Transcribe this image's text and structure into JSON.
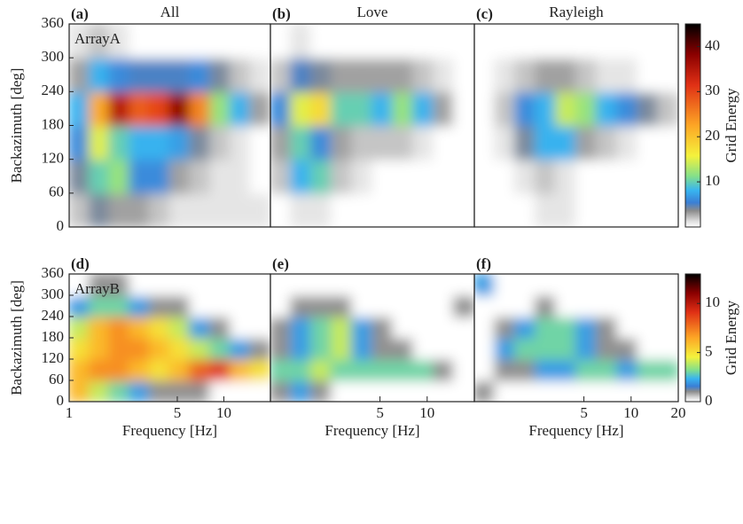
{
  "chart_data": [
    {
      "type": "heatmap",
      "panel_label": "(a)",
      "title": "All",
      "annotation": "ArrayA",
      "ylabel": "Backazimuth [deg]",
      "xlim": [
        1,
        20
      ],
      "ylim": [
        0,
        360
      ],
      "yticks": [
        0,
        60,
        120,
        180,
        240,
        300,
        360
      ],
      "log_x": true,
      "x": [
        1.16,
        1.57,
        2.11,
        2.85,
        3.85,
        5.2,
        7.0,
        9.5,
        12.8,
        17.2
      ],
      "y": [
        30,
        90,
        150,
        210,
        270,
        330
      ],
      "z": [
        [
          2,
          4,
          3,
          3,
          2,
          1,
          1,
          1,
          1,
          1
        ],
        [
          4,
          10,
          12,
          6,
          6,
          3,
          2,
          1,
          1,
          0
        ],
        [
          6,
          15,
          10,
          8,
          8,
          7,
          4,
          2,
          1,
          0
        ],
        [
          8,
          22,
          35,
          28,
          30,
          38,
          25,
          12,
          8,
          3
        ],
        [
          3,
          8,
          6,
          5,
          5,
          5,
          6,
          4,
          2,
          1
        ],
        [
          1,
          2,
          1,
          0,
          0,
          0,
          0,
          0,
          0,
          0
        ]
      ]
    },
    {
      "type": "heatmap",
      "panel_label": "(b)",
      "title": "Love",
      "xlim": [
        1,
        20
      ],
      "ylim": [
        0,
        360
      ],
      "log_x": true,
      "x": [
        1.16,
        1.57,
        2.11,
        2.85,
        3.85,
        5.2,
        7.0,
        9.5,
        12.8,
        17.2
      ],
      "y": [
        30,
        90,
        150,
        210,
        270,
        330
      ],
      "z": [
        [
          0,
          1,
          1,
          0,
          0,
          0,
          0,
          0,
          0,
          0
        ],
        [
          2,
          8,
          10,
          2,
          1,
          0,
          0,
          0,
          0,
          0
        ],
        [
          3,
          10,
          6,
          3,
          2,
          2,
          2,
          1,
          0,
          0
        ],
        [
          6,
          15,
          18,
          10,
          10,
          8,
          12,
          8,
          3,
          0
        ],
        [
          2,
          5,
          4,
          3,
          3,
          3,
          3,
          2,
          1,
          0
        ],
        [
          0,
          1,
          0,
          0,
          0,
          0,
          0,
          0,
          0,
          0
        ]
      ]
    },
    {
      "type": "heatmap",
      "panel_label": "(c)",
      "title": "Rayleigh",
      "xlim": [
        1,
        20
      ],
      "ylim": [
        0,
        360
      ],
      "log_x": true,
      "x": [
        1.16,
        1.57,
        2.11,
        2.85,
        3.85,
        5.2,
        7.0,
        9.5,
        12.8,
        17.2
      ],
      "y": [
        30,
        90,
        150,
        210,
        270,
        330
      ],
      "z": [
        [
          0,
          0,
          0,
          1,
          1,
          0,
          0,
          0,
          0,
          0
        ],
        [
          0,
          0,
          1,
          2,
          1,
          0,
          0,
          0,
          0,
          0
        ],
        [
          0,
          1,
          4,
          8,
          8,
          3,
          2,
          1,
          0,
          0
        ],
        [
          0,
          2,
          6,
          8,
          14,
          12,
          8,
          6,
          4,
          2
        ],
        [
          0,
          1,
          2,
          3,
          3,
          2,
          1,
          1,
          0,
          0
        ],
        [
          0,
          0,
          0,
          0,
          0,
          0,
          0,
          0,
          0,
          0
        ]
      ],
      "colorbar": {
        "label": "Grid Energy",
        "lim": [
          0,
          45
        ],
        "ticks": [
          10,
          20,
          30,
          40
        ]
      }
    },
    {
      "type": "heatmap",
      "panel_label": "(d)",
      "annotation": "ArrayB",
      "ylabel": "Backazimuth [deg]",
      "xlabel": "Frequency [Hz]",
      "xlim": [
        1,
        20
      ],
      "ylim": [
        0,
        360
      ],
      "yticks": [
        0,
        60,
        120,
        180,
        240,
        300,
        360
      ],
      "xticks": [
        1,
        5,
        10
      ],
      "log_x": true,
      "x": [
        1.16,
        1.57,
        2.11,
        2.85,
        3.85,
        5.2,
        7.0,
        9.5,
        12.8,
        17.2
      ],
      "y": [
        30,
        90,
        150,
        210,
        270,
        330
      ],
      "z": [
        [
          6,
          4,
          3,
          2,
          1,
          1,
          1,
          0,
          0,
          0
        ],
        [
          6,
          7,
          7,
          6,
          5,
          6,
          8,
          9,
          6,
          5
        ],
        [
          5,
          6,
          7,
          7,
          6,
          5,
          4,
          3,
          2,
          1
        ],
        [
          4,
          6,
          7,
          6,
          5,
          4,
          2,
          1,
          0,
          0
        ],
        [
          2,
          3,
          3,
          2,
          1,
          1,
          0,
          0,
          0,
          0
        ],
        [
          0,
          1,
          1,
          0,
          0,
          0,
          0,
          0,
          0,
          0
        ]
      ]
    },
    {
      "type": "heatmap",
      "panel_label": "(e)",
      "xlabel": "Frequency [Hz]",
      "xlim": [
        1,
        20
      ],
      "ylim": [
        0,
        360
      ],
      "xticks": [
        5,
        10
      ],
      "log_x": true,
      "x": [
        1.16,
        1.57,
        2.11,
        2.85,
        3.85,
        5.2,
        7.0,
        9.5,
        12.8,
        17.2
      ],
      "y": [
        30,
        90,
        150,
        210,
        270,
        330
      ],
      "z": [
        [
          1,
          2,
          1,
          0,
          0,
          0,
          0,
          0,
          0,
          0
        ],
        [
          3,
          3,
          4,
          3,
          3,
          3,
          3,
          3,
          1,
          0
        ],
        [
          1,
          2,
          3,
          4,
          2,
          1,
          1,
          0,
          0,
          0
        ],
        [
          1,
          2,
          3,
          4,
          2,
          1,
          0,
          0,
          0,
          0
        ],
        [
          0,
          1,
          1,
          1,
          0,
          0,
          0,
          0,
          0,
          1
        ],
        [
          0,
          0,
          0,
          0,
          0,
          0,
          0,
          0,
          0,
          0
        ]
      ]
    },
    {
      "type": "heatmap",
      "panel_label": "(f)",
      "xlabel": "Frequency [Hz]",
      "xlim": [
        1,
        20
      ],
      "ylim": [
        0,
        360
      ],
      "xticks": [
        5,
        10,
        20
      ],
      "log_x": true,
      "x": [
        1.16,
        1.57,
        2.11,
        2.85,
        3.85,
        5.2,
        7.0,
        9.5,
        12.8,
        17.2
      ],
      "y": [
        30,
        90,
        150,
        210,
        270,
        330
      ],
      "z": [
        [
          1,
          0,
          0,
          0,
          0,
          0,
          0,
          0,
          0,
          0
        ],
        [
          0,
          1,
          1,
          2,
          2,
          3,
          3,
          2,
          3,
          3
        ],
        [
          0,
          2,
          3,
          3,
          3,
          2,
          1,
          1,
          0,
          0
        ],
        [
          0,
          1,
          2,
          3,
          3,
          2,
          1,
          0,
          0,
          0
        ],
        [
          0,
          0,
          0,
          1,
          0,
          0,
          0,
          0,
          0,
          0
        ],
        [
          2,
          0,
          0,
          0,
          0,
          0,
          0,
          0,
          0,
          0
        ]
      ],
      "colorbar": {
        "label": "Grid Energy",
        "lim": [
          0,
          13
        ],
        "ticks": [
          0,
          5,
          10
        ]
      }
    }
  ]
}
